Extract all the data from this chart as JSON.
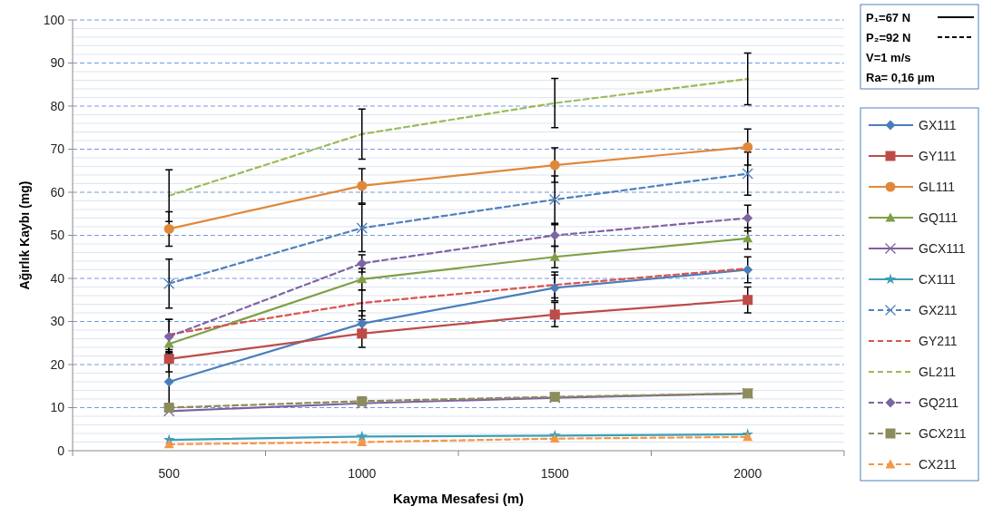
{
  "chart_data": {
    "type": "line",
    "xlabel": "Kayma Mesafesi (m)",
    "ylabel": "Ağırlık Kaybı (mg)",
    "categories": [
      "500",
      "1000",
      "1500",
      "2000"
    ],
    "ylim": [
      0,
      100
    ],
    "yticks": [
      0,
      10,
      20,
      30,
      40,
      50,
      60,
      70,
      80,
      90,
      100
    ],
    "grid": "y",
    "legend": "right",
    "annotations": [
      "P₁=67 N",
      "P₂=92 N",
      "V=1 m/s",
      "Ra= 0,16 µm"
    ],
    "series": [
      {
        "name": "GX111",
        "color": "#4a7ebb",
        "marker": "diamond",
        "line_style": "solid",
        "values": [
          16,
          29.5,
          37.8,
          42
        ],
        "errors": [
          7,
          3,
          3,
          3
        ]
      },
      {
        "name": "GY111",
        "color": "#be4b48",
        "marker": "square",
        "line_style": "solid",
        "values": [
          21.3,
          27.2,
          31.6,
          35
        ],
        "errors": [
          3,
          3.2,
          2.8,
          3
        ]
      },
      {
        "name": "GL111",
        "color": "#e0883a",
        "marker": "circle",
        "line_style": "solid",
        "values": [
          51.5,
          61.5,
          66.3,
          70.5
        ],
        "errors": [
          4,
          4,
          4,
          4.2
        ]
      },
      {
        "name": "GQ111",
        "color": "#7f9f44",
        "marker": "triangle",
        "line_style": "solid",
        "values": [
          24.8,
          39.8,
          45,
          49.3
        ],
        "errors": [
          2,
          2.5,
          2.5,
          2.5
        ]
      },
      {
        "name": "GCX111",
        "color": "#7d5fa0",
        "marker": "cross",
        "line_style": "solid",
        "values": [
          9.2,
          11,
          12.3,
          13.3
        ]
      },
      {
        "name": "CX111",
        "color": "#3d9eb5",
        "marker": "star",
        "line_style": "solid",
        "values": [
          2.5,
          3.3,
          3.5,
          3.8
        ]
      },
      {
        "name": "GX211",
        "color": "#4f81bd",
        "marker": "cross",
        "line_style": "dashed",
        "values": [
          38.8,
          51.7,
          58.3,
          64.3
        ],
        "errors": [
          5.7,
          5.5,
          5.5,
          5
        ]
      },
      {
        "name": "GY211",
        "color": "#d9534f",
        "marker": "none",
        "line_style": "dashed",
        "values": [
          27,
          34.3,
          38.5,
          42.3
        ],
        "errors": [
          3.5,
          3,
          3,
          null
        ]
      },
      {
        "name": "GL211",
        "color": "#9bbb59",
        "marker": "none",
        "line_style": "dashed",
        "values": [
          59.2,
          73.5,
          80.7,
          86.3
        ],
        "errors": [
          6,
          5.8,
          5.7,
          6
        ]
      },
      {
        "name": "GQ211",
        "color": "#8064a2",
        "marker": "diamond",
        "line_style": "dashed",
        "values": [
          26.5,
          43.5,
          50,
          54
        ],
        "errors": [
          4,
          2,
          2.5,
          3
        ]
      },
      {
        "name": "GCX211",
        "color": "#8c8c5c",
        "marker": "square",
        "line_style": "dashed",
        "values": [
          10,
          11.5,
          12.5,
          13.3
        ]
      },
      {
        "name": "CX211",
        "color": "#f79646",
        "marker": "triangle",
        "line_style": "dashed",
        "values": [
          1.5,
          2,
          2.8,
          3.2
        ]
      }
    ]
  }
}
